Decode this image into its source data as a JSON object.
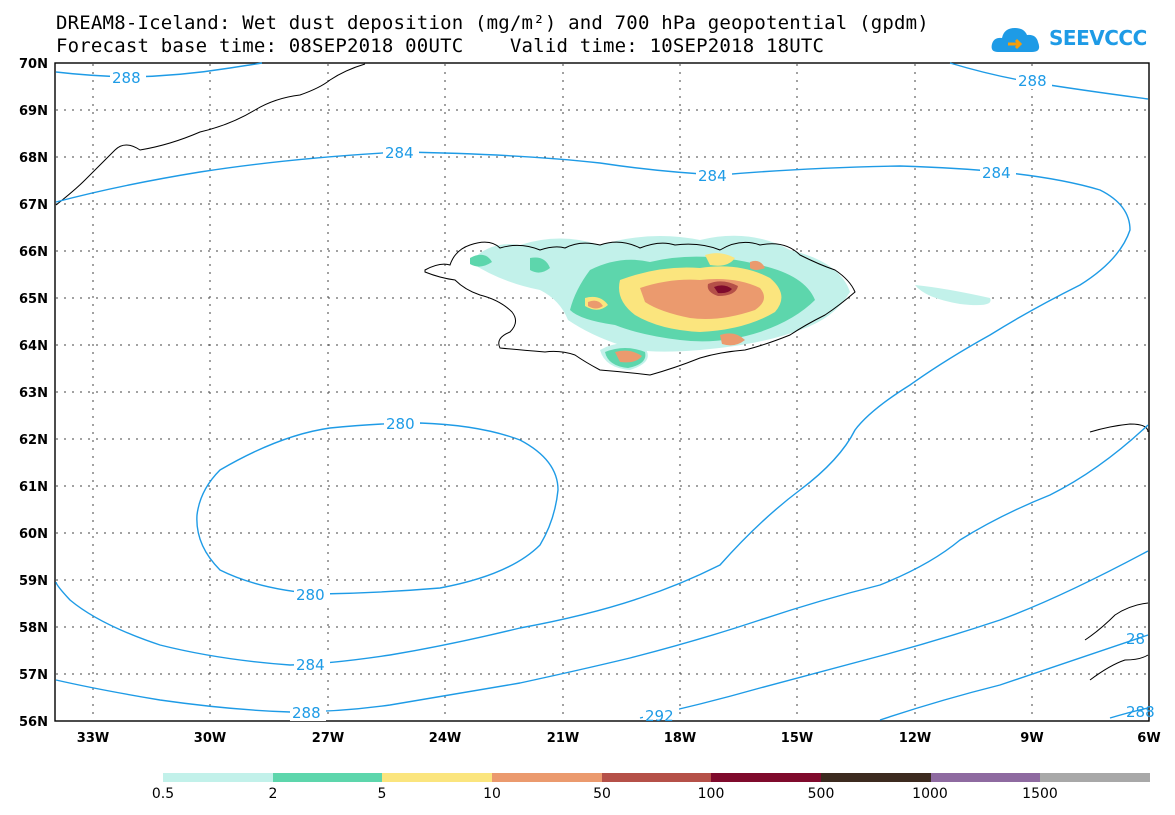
{
  "title": {
    "line1": "DREAM8-Iceland: Wet dust deposition (mg/m²) and 700 hPa geopotential (gpdm)",
    "line2": "Forecast base time: 08SEP2018 00UTC    Valid time: 10SEP2018 18UTC"
  },
  "logo": {
    "text": "SEEVCCC",
    "icon": "cloud-icon"
  },
  "map": {
    "lat_labels": [
      "70N",
      "69N",
      "68N",
      "67N",
      "66N",
      "65N",
      "64N",
      "63N",
      "62N",
      "61N",
      "60N",
      "59N",
      "58N",
      "57N",
      "56N"
    ],
    "lon_labels": [
      "33W",
      "30W",
      "27W",
      "24W",
      "21W",
      "18W",
      "15W",
      "12W",
      "9W",
      "6W"
    ],
    "contour_labels": [
      "288",
      "288",
      "284",
      "284",
      "284",
      "280",
      "280",
      "284",
      "288",
      "292",
      "288",
      "28"
    ],
    "contour_color": "#1e9be6"
  },
  "colorbar": {
    "labels": [
      "0.5",
      "2",
      "5",
      "10",
      "50",
      "100",
      "500",
      "1000",
      "1500"
    ],
    "colors": [
      "#c2f1ea",
      "#5dd6ac",
      "#fbe57e",
      "#eb9a6e",
      "#b55048",
      "#7f0a2c",
      "#3c2a1f",
      "#8e6aa0",
      "#a8a8a8"
    ]
  }
}
